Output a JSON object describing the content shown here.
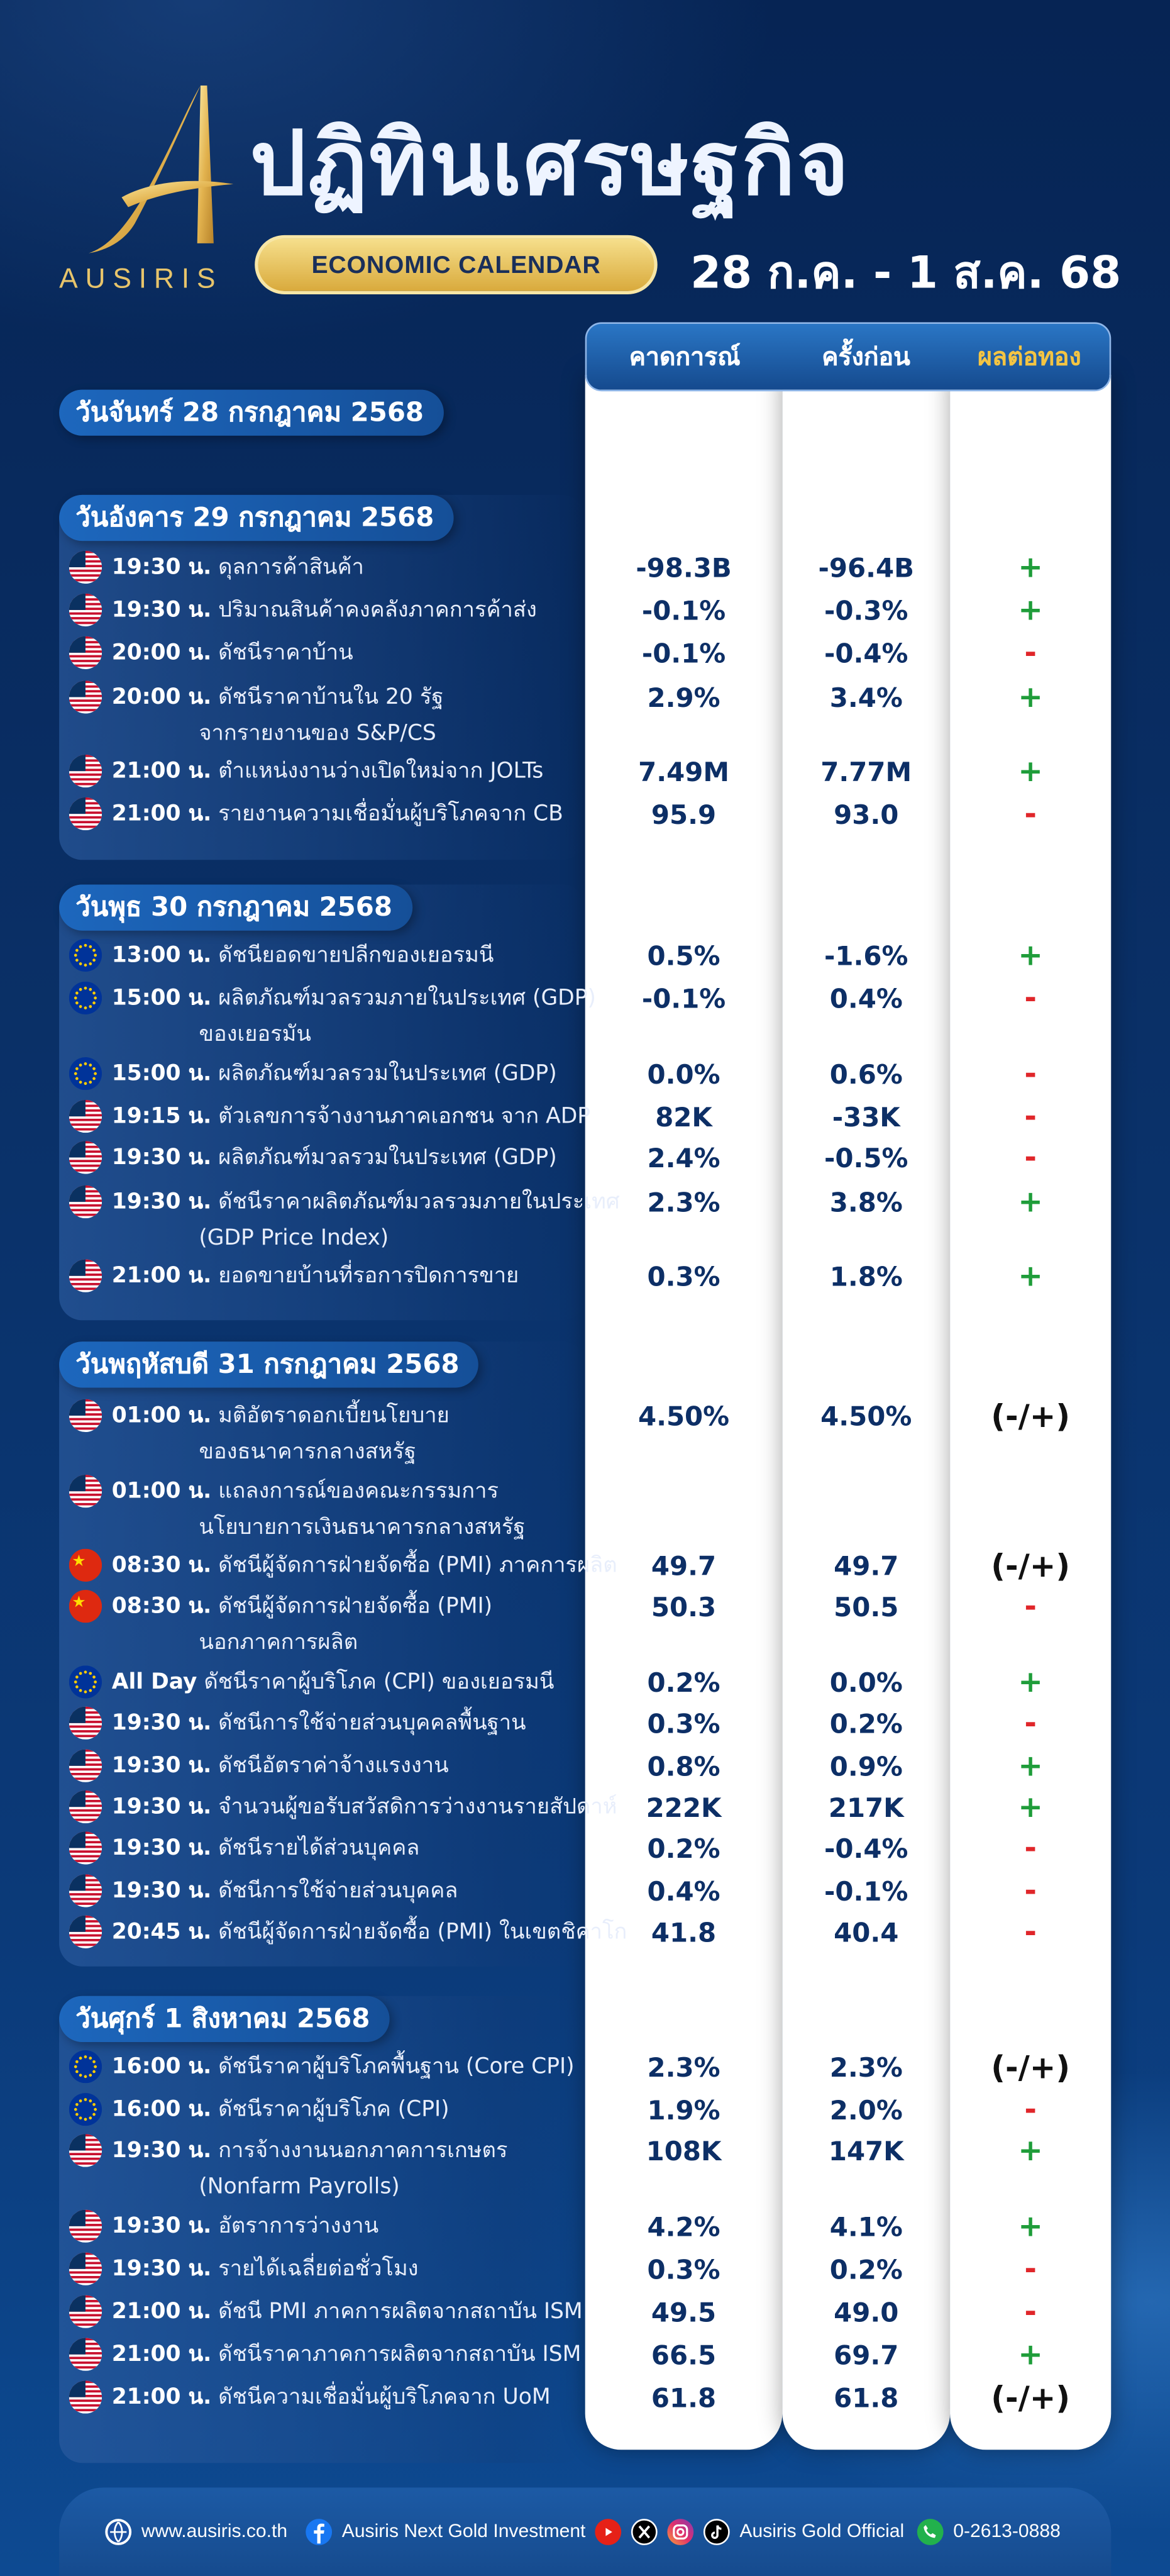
{
  "header": {
    "brand": "AUSIRIS",
    "title": "ปฏิทินเศรษฐกิจ",
    "subtitle_pill": "ECONOMIC CALENDAR",
    "date_range": "28 ก.ค. - 1 ส.ค. 68"
  },
  "columns": {
    "forecast": "คาดการณ์",
    "previous": "ครั้งก่อน",
    "gold_impact": "ผลต่อทอง"
  },
  "days": [
    {
      "title": "วันจันทร์ 28 กรกฎาคม 2568",
      "events": []
    },
    {
      "title": "วันอังคาร 29 กรกฎาคม 2568",
      "events": [
        {
          "flag": "us",
          "time": "19:30 น.",
          "name": "ดุลการค้าสินค้า",
          "forecast": "-98.3B",
          "previous": "-96.4B",
          "impact": "+"
        },
        {
          "flag": "us",
          "time": "19:30 น.",
          "name": "ปริมาณสินค้าคงคลังภาคการค้าส่ง",
          "forecast": "-0.1%",
          "previous": "-0.3%",
          "impact": "+"
        },
        {
          "flag": "us",
          "time": "20:00 น.",
          "name": "ดัชนีราคาบ้าน",
          "forecast": "-0.1%",
          "previous": "-0.4%",
          "impact": "-"
        },
        {
          "flag": "us",
          "time": "20:00 น.",
          "name": "ดัชนีราคาบ้านใน 20 รัฐ",
          "name2": "จากรายงานของ S&P/CS",
          "forecast": "2.9%",
          "previous": "3.4%",
          "impact": "+"
        },
        {
          "flag": "us",
          "time": "21:00 น.",
          "name": "ตำแหน่งงานว่างเปิดใหม่จาก JOLTs",
          "forecast": "7.49M",
          "previous": "7.77M",
          "impact": "+"
        },
        {
          "flag": "us",
          "time": "21:00 น.",
          "name": "รายงานความเชื่อมั่นผู้บริโภคจาก CB",
          "forecast": "95.9",
          "previous": "93.0",
          "impact": "-"
        }
      ]
    },
    {
      "title": "วันพุธ 30 กรกฎาคม 2568",
      "events": [
        {
          "flag": "eu",
          "time": "13:00 น.",
          "name": "ดัชนียอดขายปลีกของเยอรมนี",
          "forecast": "0.5%",
          "previous": "-1.6%",
          "impact": "+"
        },
        {
          "flag": "eu",
          "time": "15:00 น.",
          "name": "ผลิตภัณฑ์มวลรวมภายในประเทศ (GDP)",
          "name2": "ของเยอรมัน",
          "forecast": "-0.1%",
          "previous": "0.4%",
          "impact": "-"
        },
        {
          "flag": "eu",
          "time": "15:00 น.",
          "name": "ผลิตภัณฑ์มวลรวมในประเทศ (GDP)",
          "forecast": "0.0%",
          "previous": "0.6%",
          "impact": "-"
        },
        {
          "flag": "us",
          "time": "19:15 น.",
          "name": "ตัวเลขการจ้างงานภาคเอกชน จาก ADP",
          "forecast": "82K",
          "previous": "-33K",
          "impact": "-"
        },
        {
          "flag": "us",
          "time": "19:30 น.",
          "name": "ผลิตภัณฑ์มวลรวมในประเทศ (GDP)",
          "forecast": "2.4%",
          "previous": "-0.5%",
          "impact": "-"
        },
        {
          "flag": "us",
          "time": "19:30 น.",
          "name": "ดัชนีราคาผลิตภัณฑ์มวลรวมภายในประเทศ",
          "name2": "(GDP Price Index)",
          "forecast": "2.3%",
          "previous": "3.8%",
          "impact": "+"
        },
        {
          "flag": "us",
          "time": "21:00 น.",
          "name": "ยอดขายบ้านที่รอการปิดการขาย",
          "forecast": "0.3%",
          "previous": "1.8%",
          "impact": "+"
        }
      ]
    },
    {
      "title": "วันพฤหัสบดี 31 กรกฎาคม 2568",
      "events": [
        {
          "flag": "us",
          "time": "01:00 น.",
          "name": "มติอัตราดอกเบี้ยนโยบาย",
          "name2": "ของธนาคารกลางสหรัฐ",
          "forecast": "4.50%",
          "previous": "4.50%",
          "impact": "(-/+)"
        },
        {
          "flag": "us",
          "time": "01:00 น.",
          "name": "แถลงการณ์ของคณะกรรมการ",
          "name2": "นโยบายการเงินธนาคารกลางสหรัฐ",
          "forecast": "",
          "previous": "",
          "impact": ""
        },
        {
          "flag": "cn",
          "time": "08:30 น.",
          "name": "ดัชนีผู้จัดการฝ่ายจัดซื้อ (PMI) ภาคการผลิต",
          "forecast": "49.7",
          "previous": "49.7",
          "impact": "(-/+)"
        },
        {
          "flag": "cn",
          "time": "08:30 น.",
          "name": "ดัชนีผู้จัดการฝ่ายจัดซื้อ (PMI)",
          "name2": "นอกภาคการผลิต",
          "forecast": "50.3",
          "previous": "50.5",
          "impact": "-"
        },
        {
          "flag": "eu",
          "time": "All Day",
          "name": "ดัชนีราคาผู้บริโภค (CPI) ของเยอรมนี",
          "forecast": "0.2%",
          "previous": "0.0%",
          "impact": "+"
        },
        {
          "flag": "us",
          "time": "19:30 น.",
          "name": "ดัชนีการใช้จ่ายส่วนบุคคลพื้นฐาน",
          "forecast": "0.3%",
          "previous": "0.2%",
          "impact": "-"
        },
        {
          "flag": "us",
          "time": "19:30 น.",
          "name": "ดัชนีอัตราค่าจ้างแรงงาน",
          "forecast": "0.8%",
          "previous": "0.9%",
          "impact": "+"
        },
        {
          "flag": "us",
          "time": "19:30 น.",
          "name": "จำนวนผู้ขอรับสวัสดิการว่างงานรายสัปดาห์",
          "forecast": "222K",
          "previous": "217K",
          "impact": "+"
        },
        {
          "flag": "us",
          "time": "19:30 น.",
          "name": "ดัชนีรายได้ส่วนบุคคล",
          "forecast": "0.2%",
          "previous": "-0.4%",
          "impact": "-"
        },
        {
          "flag": "us",
          "time": "19:30 น.",
          "name": "ดัชนีการใช้จ่ายส่วนบุคคล",
          "forecast": "0.4%",
          "previous": "-0.1%",
          "impact": "-"
        },
        {
          "flag": "us",
          "time": "20:45 น.",
          "name": "ดัชนีผู้จัดการฝ่ายจัดซื้อ (PMI) ในเขตชิคาโก",
          "forecast": "41.8",
          "previous": "40.4",
          "impact": "-"
        }
      ]
    },
    {
      "title": "วันศุกร์ 1 สิงหาคม 2568",
      "events": [
        {
          "flag": "eu",
          "time": "16:00 น.",
          "name": "ดัชนีราคาผู้บริโภคพื้นฐาน (Core CPI)",
          "forecast": "2.3%",
          "previous": "2.3%",
          "impact": "(-/+)"
        },
        {
          "flag": "eu",
          "time": "16:00 น.",
          "name": "ดัชนีราคาผู้บริโภค (CPI)",
          "forecast": "1.9%",
          "previous": "2.0%",
          "impact": "-"
        },
        {
          "flag": "us",
          "time": "19:30 น.",
          "name": "การจ้างงานนอกภาคการเกษตร",
          "name2": "(Nonfarm Payrolls)",
          "forecast": "108K",
          "previous": "147K",
          "impact": "+"
        },
        {
          "flag": "us",
          "time": "19:30 น.",
          "name": "อัตราการว่างงาน",
          "forecast": "4.2%",
          "previous": "4.1%",
          "impact": "+"
        },
        {
          "flag": "us",
          "time": "19:30 น.",
          "name": "รายได้เฉลี่ยต่อชั่วโมง",
          "forecast": "0.3%",
          "previous": "0.2%",
          "impact": "-"
        },
        {
          "flag": "us",
          "time": "21:00 น.",
          "name": "ดัชนี PMI ภาคการผลิตจากสถาบัน ISM",
          "forecast": "49.5",
          "previous": "49.0",
          "impact": "-"
        },
        {
          "flag": "us",
          "time": "21:00 น.",
          "name": "ดัชนีราคาภาคการผลิตจากสถาบัน ISM",
          "forecast": "66.5",
          "previous": "69.7",
          "impact": "+"
        },
        {
          "flag": "us",
          "time": "21:00 น.",
          "name": "ดัชนีความเชื่อมั่นผู้บริโภคจาก UoM",
          "forecast": "61.8",
          "previous": "61.8",
          "impact": "(-/+)"
        }
      ]
    }
  ],
  "footer": {
    "website": "www.ausiris.co.th",
    "facebook": "Ausiris Next Gold Investment",
    "social": "Ausiris Gold Official",
    "phone": "0-2613-0888"
  },
  "colors": {
    "plus": "#1f9d3a",
    "minus": "#e0262a",
    "gold": "#e7c46b",
    "navy": "#0d2f66"
  }
}
